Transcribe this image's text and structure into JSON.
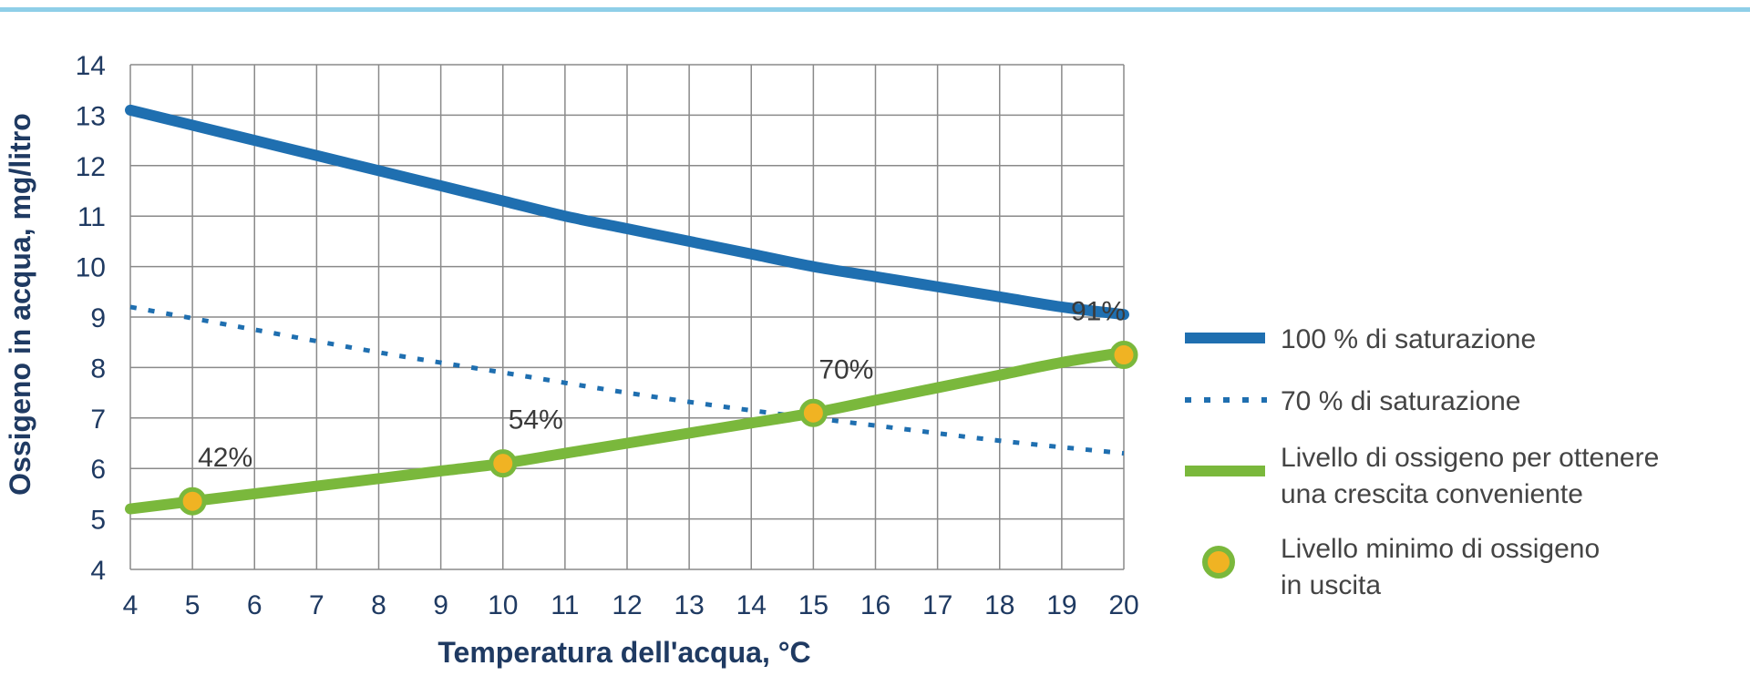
{
  "chart_data": {
    "type": "line",
    "xlabel": "Temperatura dell'acqua, °C",
    "ylabel": "Ossigeno in acqua, mg/litro",
    "xlim": [
      4,
      20
    ],
    "ylim": [
      4,
      14
    ],
    "x_ticks": [
      4,
      5,
      6,
      7,
      8,
      9,
      10,
      11,
      12,
      13,
      14,
      15,
      16,
      17,
      18,
      19,
      20
    ],
    "y_ticks": [
      4,
      5,
      6,
      7,
      8,
      9,
      10,
      11,
      12,
      13,
      14
    ],
    "grid": true,
    "legend_position": "right",
    "series": [
      {
        "name": "100 % di saturazione",
        "style": "solid-thick",
        "color": "#1f6fb0",
        "x": [
          4,
          5,
          6,
          7,
          8,
          9,
          10,
          11,
          12,
          13,
          14,
          15,
          16,
          17,
          18,
          19,
          20
        ],
        "y": [
          13.1,
          12.8,
          12.5,
          12.2,
          11.9,
          11.6,
          11.3,
          11.0,
          10.75,
          10.5,
          10.25,
          10.0,
          9.8,
          9.6,
          9.4,
          9.2,
          9.05
        ]
      },
      {
        "name": "70 % di saturazione",
        "style": "dotted",
        "color": "#1f6fb0",
        "x": [
          4,
          6,
          8,
          10,
          12,
          14,
          16,
          18,
          20
        ],
        "y": [
          9.2,
          8.75,
          8.3,
          7.9,
          7.5,
          7.15,
          6.85,
          6.55,
          6.3
        ]
      },
      {
        "name": "Livello di ossigeno per ottenere una crescita  conveniente",
        "style": "solid-thick",
        "color": "#7ab83c",
        "x": [
          4,
          5,
          6,
          7,
          8,
          9,
          10,
          11,
          12,
          13,
          14,
          15,
          16,
          17,
          18,
          19,
          20
        ],
        "y": [
          5.2,
          5.35,
          5.5,
          5.65,
          5.8,
          5.95,
          6.1,
          6.3,
          6.5,
          6.7,
          6.9,
          7.1,
          7.35,
          7.6,
          7.85,
          8.1,
          8.3
        ]
      }
    ],
    "points": {
      "name": "Livello minimo di ossigeno in uscita",
      "fill_color": "#f0b323",
      "ring_color": "#7ab83c",
      "data": [
        {
          "x": 5,
          "y": 5.35,
          "label": "42%"
        },
        {
          "x": 10,
          "y": 6.1,
          "label": "54%"
        },
        {
          "x": 15,
          "y": 7.1,
          "label": "70%"
        },
        {
          "x": 20,
          "y": 8.25,
          "label": "91%"
        }
      ]
    },
    "legend": [
      {
        "key": "saturation100",
        "lines": [
          "100 % di saturazione"
        ]
      },
      {
        "key": "saturation70",
        "lines": [
          "70 % di saturazione"
        ]
      },
      {
        "key": "growth",
        "lines": [
          "Livello di ossigeno per ottenere",
          "una crescita  conveniente"
        ]
      },
      {
        "key": "minimum",
        "lines": [
          "Livello minimo di ossigeno",
          "in uscita"
        ]
      }
    ]
  }
}
